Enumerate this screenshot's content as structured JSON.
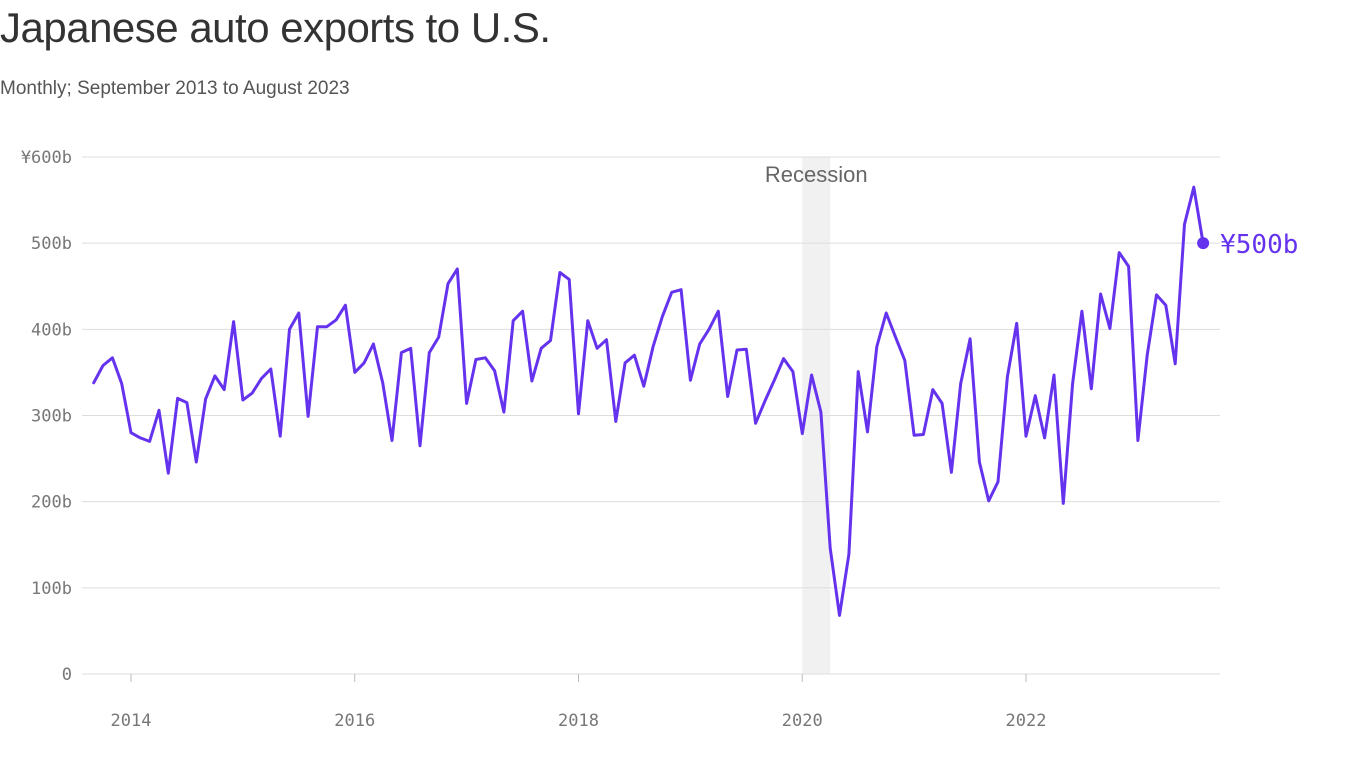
{
  "title": "Japanese auto exports to U.S.",
  "subtitle": "Monthly; September 2013 to August 2023",
  "chart_data": {
    "type": "line",
    "title": "Japanese auto exports to U.S.",
    "subtitle": "Monthly; September 2013 to August 2023",
    "xlabel": "",
    "ylabel": "",
    "x_range": [
      "2013-09",
      "2023-08"
    ],
    "ylim": [
      0,
      600
    ],
    "y_ticks": [
      0,
      100,
      200,
      300,
      400,
      500,
      600
    ],
    "y_tick_labels": [
      "0",
      "100b",
      "200b",
      "300b",
      "400b",
      "500b",
      "¥600b"
    ],
    "x_ticks": [
      "2014-01",
      "2016-01",
      "2018-01",
      "2020-01",
      "2022-01"
    ],
    "x_tick_labels": [
      "2014",
      "2016",
      "2018",
      "2020",
      "2022"
    ],
    "grid": "horizontal",
    "line_color": "#6533ee",
    "shade": {
      "label": "Recession",
      "start": "2020-01",
      "end": "2020-04",
      "color": "#f1f1f1"
    },
    "end_label": "¥500b",
    "series": [
      {
        "start": "2013-09",
        "values": [
          338,
          358,
          367,
          337,
          280,
          274,
          270,
          306,
          233,
          320,
          315,
          246,
          319,
          346,
          330,
          409,
          318,
          326,
          343,
          354,
          276,
          400,
          419,
          299,
          403,
          403,
          411,
          428,
          350,
          361,
          383,
          338,
          271,
          373,
          378,
          265,
          373,
          391,
          453,
          470,
          314,
          365,
          367,
          352,
          304,
          410,
          421,
          340,
          378,
          387,
          466,
          458,
          302,
          410,
          378,
          388,
          293,
          361,
          370,
          334,
          380,
          415,
          443,
          446,
          341,
          383,
          400,
          421,
          322,
          376,
          377,
          291,
          317,
          341,
          366,
          351,
          279,
          347,
          304,
          146,
          68,
          139,
          351,
          281,
          380,
          419,
          391,
          364,
          277,
          278,
          330,
          314,
          234,
          337,
          389,
          246,
          201,
          223,
          345,
          407,
          276,
          323,
          274,
          347,
          198,
          337,
          421,
          331,
          441,
          401,
          489,
          473,
          271,
          370,
          440,
          428,
          360,
          522,
          565,
          500
        ]
      }
    ]
  }
}
